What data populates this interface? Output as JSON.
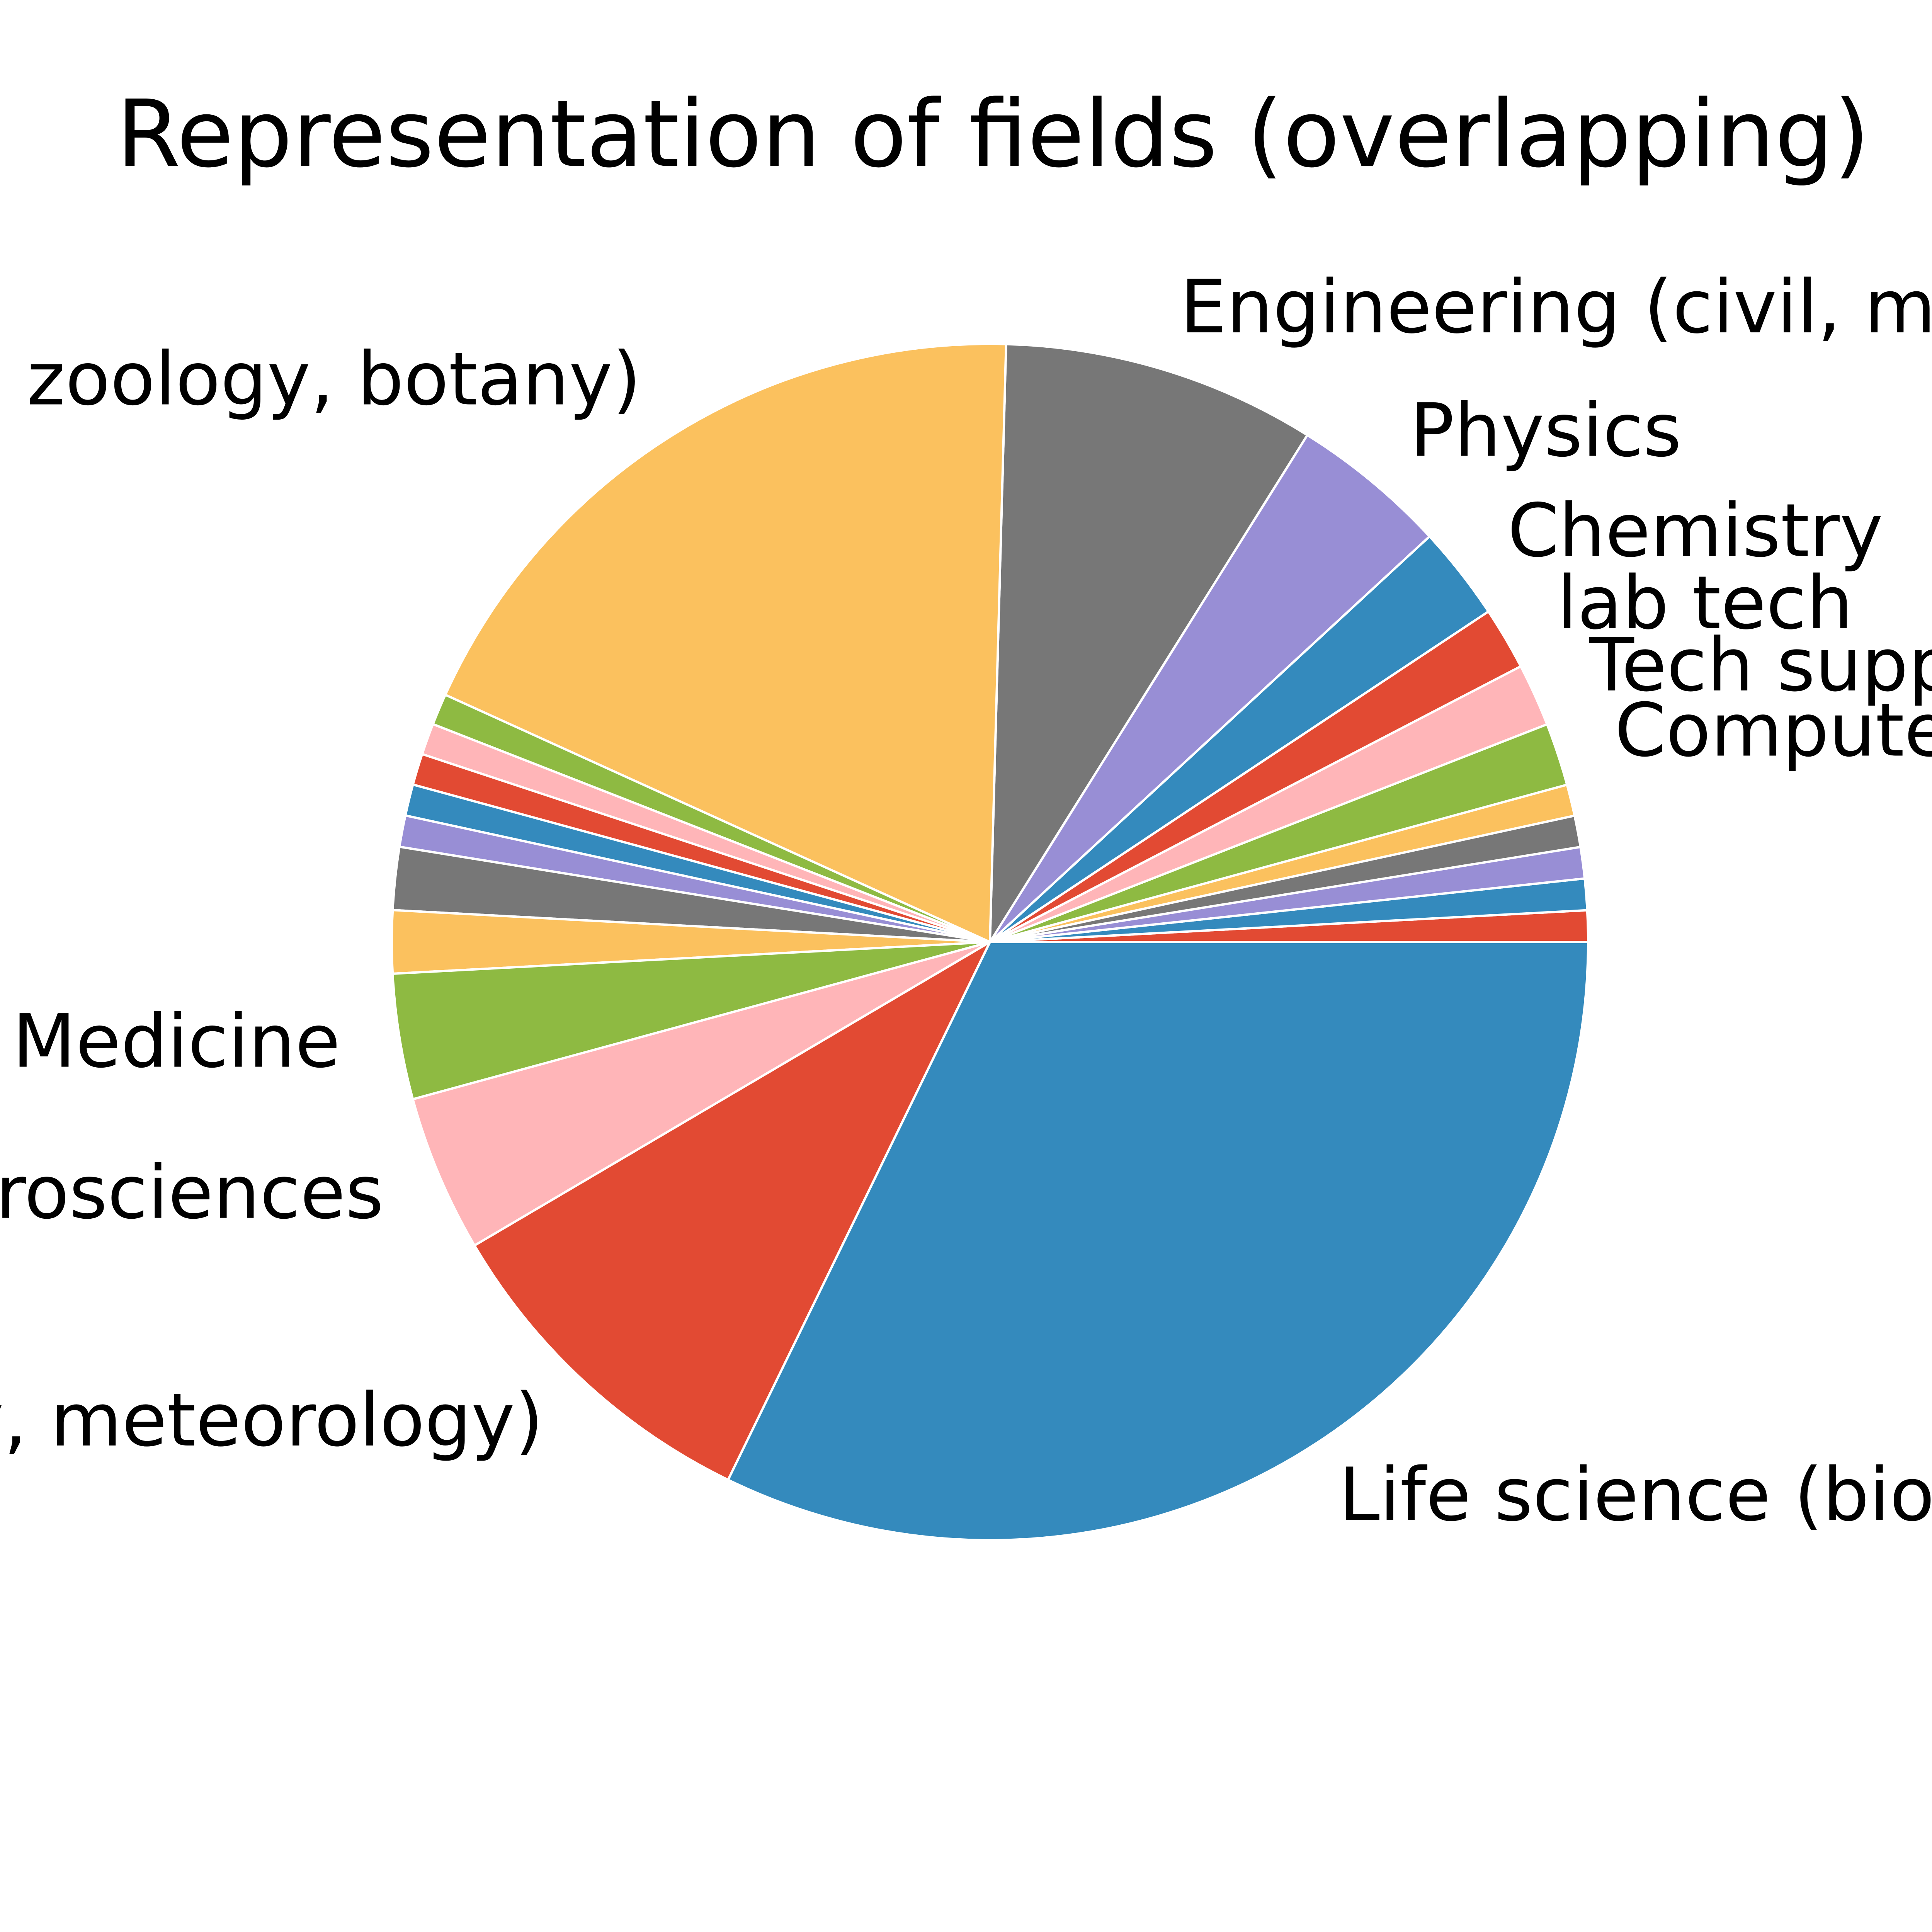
{
  "chart_data": {
    "type": "pie",
    "title": "Representation of fields (overlapping)",
    "start_angle_deg": 0,
    "direction": "counterclockwise",
    "slices": [
      {
        "label": "",
        "value": 1.02,
        "color": "#E24A33"
      },
      {
        "label": "",
        "value": 1.02,
        "color": "#348ABD"
      },
      {
        "label": "",
        "value": 1.02,
        "color": "#988ED5"
      },
      {
        "label": "",
        "value": 1.02,
        "color": "#777777"
      },
      {
        "label": "",
        "value": 1.02,
        "color": "#FBC15E"
      },
      {
        "label": "Compute",
        "value": 2.04,
        "color": "#8EBA42"
      },
      {
        "label": "Tech supp",
        "value": 2.04,
        "color": "#FFB5B8"
      },
      {
        "label": "lab tech",
        "value": 2.04,
        "color": "#E24A33"
      },
      {
        "label": "Chemistry",
        "value": 3.06,
        "color": "#348ABD"
      },
      {
        "label": "Physics",
        "value": 5.1,
        "color": "#988ED5"
      },
      {
        "label": "Engineering (civil, m",
        "value": 10.2,
        "color": "#777777"
      },
      {
        "label": " zoology, botany)",
        "value": 22.45,
        "color": "#FBC15E"
      },
      {
        "label": "",
        "value": 1.02,
        "color": "#8EBA42"
      },
      {
        "label": "",
        "value": 1.02,
        "color": "#FFB5B8"
      },
      {
        "label": "",
        "value": 1.02,
        "color": "#E24A33"
      },
      {
        "label": "",
        "value": 1.02,
        "color": "#348ABD"
      },
      {
        "label": "",
        "value": 1.02,
        "color": "#988ED5"
      },
      {
        "label": "",
        "value": 2.04,
        "color": "#777777"
      },
      {
        "label": "",
        "value": 2.04,
        "color": "#FBC15E"
      },
      {
        "label": "Medicine",
        "value": 4.08,
        "color": "#8EBA42"
      },
      {
        "label": "urosciences",
        "value": 5.1,
        "color": "#FFB5B8"
      },
      {
        "label": "y, meteorology)",
        "value": 11.22,
        "color": "#E24A33"
      },
      {
        "label": "Life science (bio",
        "value": 38.78,
        "color": "#348ABD"
      }
    ]
  }
}
